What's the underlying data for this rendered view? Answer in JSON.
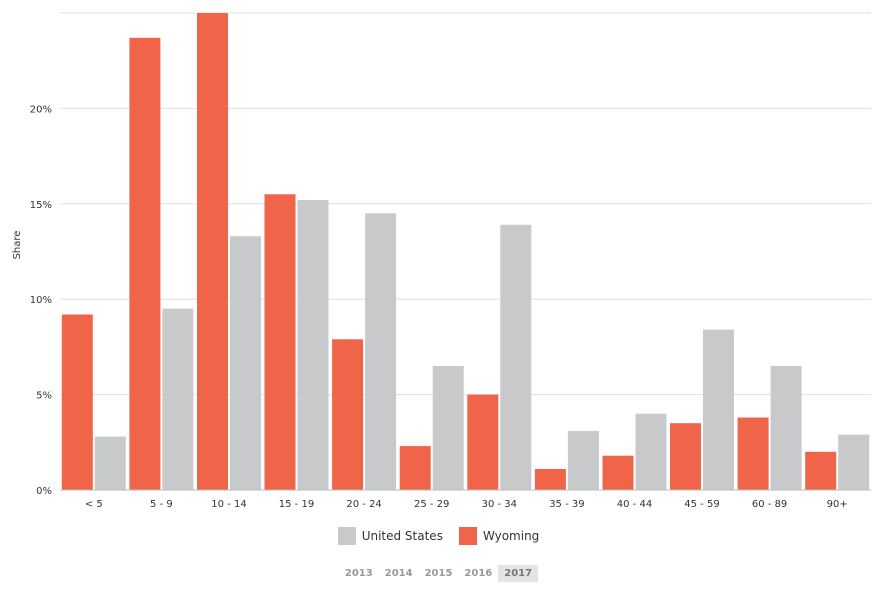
{
  "chart_data": {
    "type": "bar",
    "title": "",
    "xlabel": "",
    "ylabel": "Share",
    "ylim": [
      0,
      25
    ],
    "yticks": [
      0,
      5,
      10,
      15,
      20
    ],
    "ytick_labels": [
      "0%",
      "5%",
      "10%",
      "15%",
      "20%"
    ],
    "grid": true,
    "categories": [
      "< 5",
      "5 - 9",
      "10 - 14",
      "15 - 19",
      "20 - 24",
      "25 - 29",
      "30 - 34",
      "35 - 39",
      "40 - 44",
      "45 - 59",
      "60 - 89",
      "90+"
    ],
    "series": [
      {
        "name": "Wyoming",
        "color": "#f0644a",
        "values": [
          9.2,
          23.7,
          25.0,
          15.5,
          7.9,
          2.3,
          5.0,
          1.1,
          1.8,
          3.5,
          3.8,
          2.0
        ]
      },
      {
        "name": "United States",
        "color": "#c8c9cb",
        "values": [
          2.8,
          9.5,
          13.3,
          15.2,
          14.5,
          6.5,
          13.9,
          3.1,
          4.0,
          8.4,
          6.5,
          2.9
        ]
      }
    ],
    "legend": [
      {
        "label": "United States",
        "color": "#c8c9cb"
      },
      {
        "label": "Wyoming",
        "color": "#f0644a"
      }
    ],
    "legend_position": "bottom-center"
  },
  "years": [
    "2013",
    "2014",
    "2015",
    "2016",
    "2017"
  ],
  "selected_year": "2017"
}
